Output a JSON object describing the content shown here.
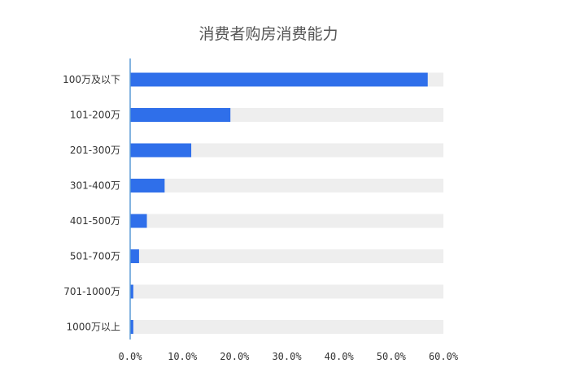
{
  "chart_data": {
    "type": "bar",
    "orientation": "horizontal",
    "title": "消费者购房消费能力",
    "xlabel": "",
    "ylabel": "",
    "categories": [
      "100万及以下",
      "101-200万",
      "201-300万",
      "301-400万",
      "401-500万",
      "501-700万",
      "701-1000万",
      "1000万以上"
    ],
    "values": [
      57.0,
      19.2,
      11.7,
      6.6,
      3.2,
      1.7,
      0.6,
      0.6
    ],
    "unit": "%",
    "xlim": [
      0,
      60
    ],
    "xticks": [
      "0.0%",
      "10.0%",
      "20.0%",
      "30.0%",
      "40.0%",
      "50.0%",
      "60.0%"
    ],
    "background_track": true,
    "grid": false,
    "legend": "none",
    "colors": {
      "bar": "#2f6fea",
      "track": "#eeeeee",
      "axis": "#5b9bd5",
      "title": "#555555",
      "text": "#333333"
    }
  }
}
